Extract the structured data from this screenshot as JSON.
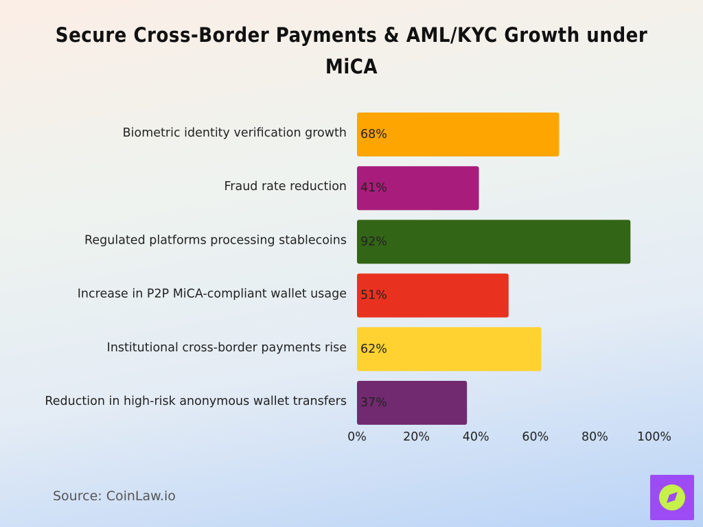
{
  "chart_data": {
    "type": "hbar",
    "title": "Secure Cross-Border Payments & AML/KYC Growth under MiCA",
    "categories": [
      "Biometric identity verification growth",
      "Fraud rate reduction",
      "Regulated platforms processing stablecoins",
      "Increase in P2P MiCA-compliant wallet usage",
      "Institutional cross-border payments rise",
      "Reduction in high-risk anonymous wallet transfers"
    ],
    "values": [
      68,
      41,
      92,
      51,
      62,
      37
    ],
    "value_labels": [
      "68%",
      "41%",
      "92%",
      "51%",
      "62%",
      "37%"
    ],
    "colors": [
      "#ffa502",
      "#a81d7b",
      "#336516",
      "#e8321f",
      "#ffd232",
      "#712a6f"
    ],
    "xlim": [
      0,
      100
    ],
    "xticks": [
      {
        "value": 0,
        "label": "0%"
      },
      {
        "value": 20,
        "label": "20%"
      },
      {
        "value": 40,
        "label": "40%"
      },
      {
        "value": 60,
        "label": "60%"
      },
      {
        "value": 80,
        "label": "80%"
      },
      {
        "value": 100,
        "label": "100%"
      }
    ],
    "source": "Source: CoinLaw.io"
  }
}
